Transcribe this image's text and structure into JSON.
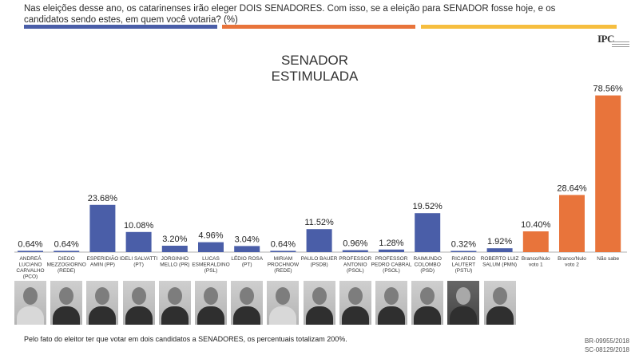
{
  "header": {
    "question": "Nas eleições desse ano, os catarinenses irão eleger DOIS SENADORES. Com isso, se a eleição para SENADOR fosse hoje, e os candidatos sendo estes, em quem você votaria? (%)",
    "logo_text": "IPC"
  },
  "footer": {
    "note": "Pelo fato do eleitor ter que votar em dois candidatos a SENADORES, os percentuais totalizam 200%.",
    "code1": "BR-09955/2018",
    "code2": "SC-08129/2018"
  },
  "colors": {
    "blue": "#4a5ea8",
    "orange": "#e8743b",
    "yellow": "#f6be3f"
  },
  "chart_data": {
    "type": "bar",
    "title": "SENADOR\nESTIMULADA",
    "title_lines": [
      "SENADOR",
      "ESTIMULADA"
    ],
    "categories": [
      [
        "ANDREÁ",
        "LUCIANO",
        "CARVALHO",
        "(PCO)"
      ],
      [
        "DIEGO",
        "MEZZOGIORNO",
        "(REDE)"
      ],
      [
        "ESPERIDIÃO",
        "AMIN (PP)"
      ],
      [
        "IDELI SALVATTI",
        "(PT)"
      ],
      [
        "JORGINHO",
        "MELLO (PR)"
      ],
      [
        "LUCAS",
        "ESMERALDINO",
        "(PSL)"
      ],
      [
        "LÉDIO ROSA",
        "(PT)"
      ],
      [
        "MIRIAM",
        "PROCHNOW",
        "(REDE)"
      ],
      [
        "PAULO BAUER",
        "(PSDB)"
      ],
      [
        "PROFESSOR",
        "ANTONIO",
        "(PSOL)"
      ],
      [
        "PROFESSOR",
        "PEDRO CABRAL",
        "(PSOL)"
      ],
      [
        "RAIMUNDO",
        "COLOMBO",
        "(PSD)"
      ],
      [
        "RICARDO",
        "LAUTERT",
        "(PSTU)"
      ],
      [
        "ROBERTO LUIZ",
        "SALUM (PMN)"
      ],
      [
        "Branco/Nulo",
        "voto 1"
      ],
      [
        "Branco/Nulo",
        "voto 2"
      ],
      [
        "Não sabe"
      ]
    ],
    "values": [
      0.64,
      0.64,
      23.68,
      10.08,
      3.2,
      4.96,
      3.04,
      0.64,
      11.52,
      0.96,
      1.28,
      19.52,
      0.32,
      1.92,
      10.4,
      28.64,
      78.56
    ],
    "value_labels": [
      "0.64%",
      "0.64%",
      "23.68%",
      "10.08%",
      "3.20%",
      "4.96%",
      "3.04%",
      "0.64%",
      "11.52%",
      "0.96%",
      "1.28%",
      "19.52%",
      "0.32%",
      "1.92%",
      "10.40%",
      "28.64%",
      "78.56%"
    ],
    "bar_colors": [
      "blue",
      "blue",
      "blue",
      "blue",
      "blue",
      "blue",
      "blue",
      "blue",
      "blue",
      "blue",
      "blue",
      "blue",
      "blue",
      "blue",
      "orange",
      "orange",
      "orange"
    ],
    "ylim": [
      0,
      80
    ],
    "xlabel": "",
    "ylabel": "",
    "grid": false,
    "legend": "none"
  }
}
